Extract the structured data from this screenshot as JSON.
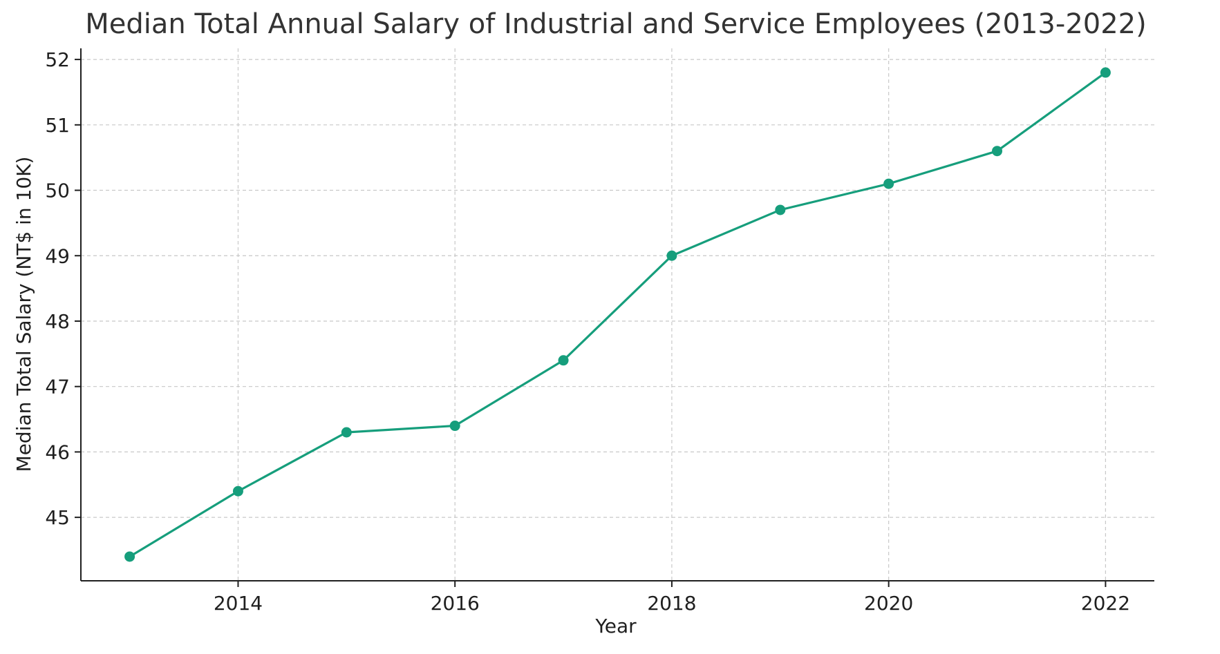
{
  "chart_data": {
    "type": "line",
    "title": "Median Total Annual Salary of Industrial and Service Employees (2013-2022)",
    "xlabel": "Year",
    "ylabel": "Median Total Salary (NT$ in 10K)",
    "x": [
      2013,
      2014,
      2015,
      2016,
      2017,
      2018,
      2019,
      2020,
      2021,
      2022
    ],
    "series": [
      {
        "values": [
          44.4,
          45.4,
          46.3,
          46.4,
          47.4,
          49.0,
          49.7,
          50.1,
          50.6,
          51.8
        ],
        "color": "#169e7c",
        "marker": "circle"
      }
    ],
    "xticks": [
      2014,
      2016,
      2018,
      2020,
      2022
    ],
    "yticks": [
      45,
      46,
      47,
      48,
      49,
      50,
      51,
      52
    ],
    "xlim": [
      2012.55,
      2022.45
    ],
    "ylim": [
      44.03,
      52.17
    ],
    "grid": true,
    "legend": "none"
  }
}
